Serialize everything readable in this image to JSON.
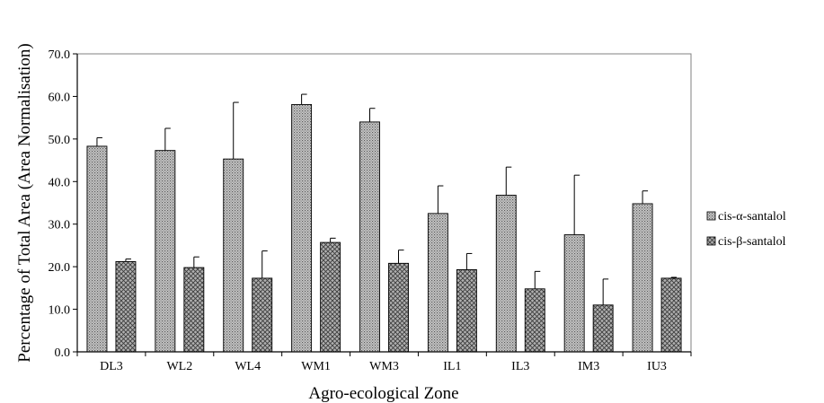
{
  "chart_data": {
    "type": "bar",
    "title": "",
    "xlabel": "Agro-ecological Zone",
    "ylabel": "Percentage of Total Area (Area Normalisation)",
    "ylim": [
      0,
      70
    ],
    "yticks": [
      "0.0",
      "10.0",
      "20.0",
      "30.0",
      "40.0",
      "50.0",
      "60.0",
      "70.0"
    ],
    "categories": [
      "DL3",
      "WL2",
      "WL4",
      "WM1",
      "WM3",
      "IL1",
      "IL3",
      "IM3",
      "IU3"
    ],
    "series": [
      {
        "name": "cis-α-santalol",
        "pattern": "dots",
        "values": [
          48.3,
          47.3,
          45.3,
          58.1,
          54.0,
          32.5,
          36.8,
          27.5,
          34.8
        ],
        "error": [
          2.0,
          5.2,
          13.3,
          2.4,
          3.2,
          6.5,
          6.6,
          14.0,
          3.0
        ]
      },
      {
        "name": "cis-β-santalol",
        "pattern": "crosshatch",
        "values": [
          21.2,
          19.8,
          17.3,
          25.7,
          20.8,
          19.3,
          14.8,
          11.0,
          17.3
        ],
        "error": [
          0.6,
          2.5,
          6.4,
          1.0,
          3.1,
          3.8,
          4.1,
          6.1,
          0.2
        ]
      }
    ],
    "grid": false,
    "legend_position": "right",
    "colors": {
      "bar_fill": "#bdbdbd",
      "pattern": "#5a5a5a",
      "axis": "#000000",
      "frame": "#808080"
    }
  }
}
